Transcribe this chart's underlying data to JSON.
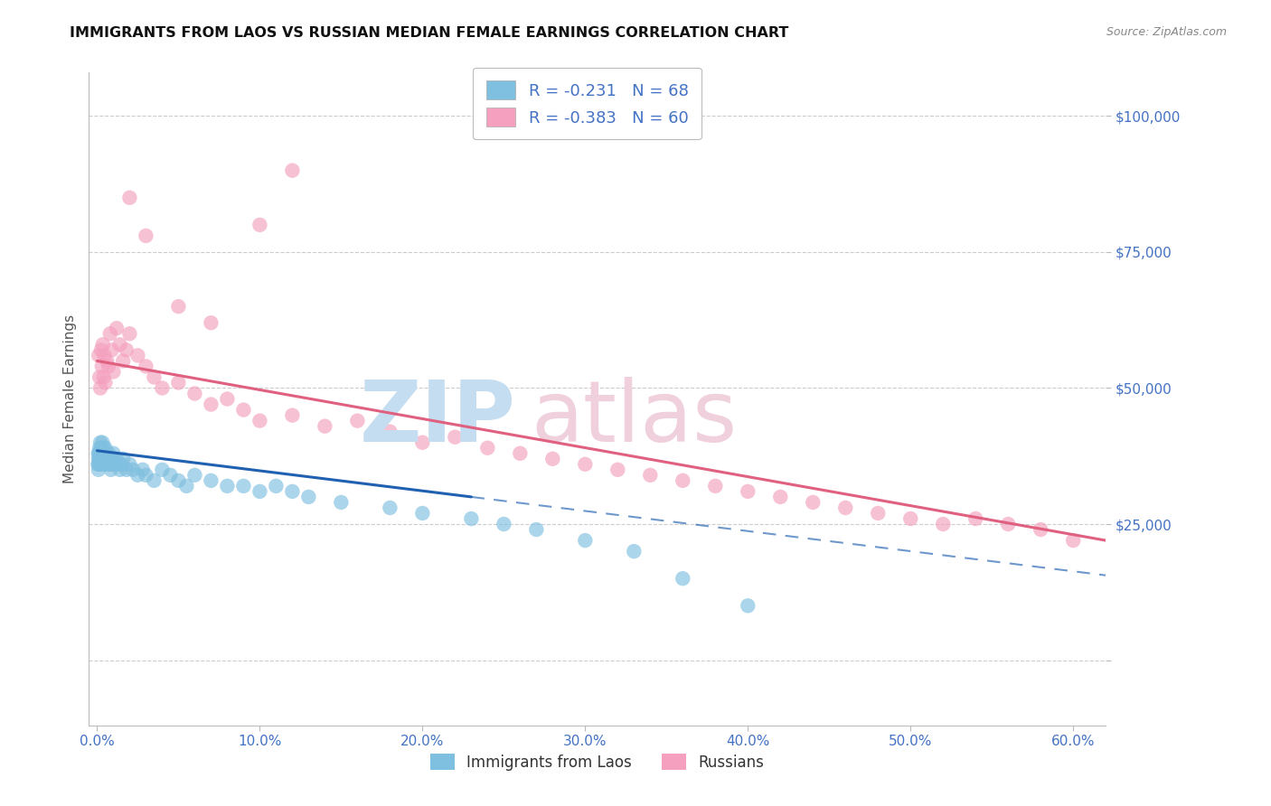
{
  "title": "IMMIGRANTS FROM LAOS VS RUSSIAN MEDIAN FEMALE EARNINGS CORRELATION CHART",
  "source": "Source: ZipAtlas.com",
  "ylabel": "Median Female Earnings",
  "laos_R": -0.231,
  "laos_N": 68,
  "russian_R": -0.383,
  "russian_N": 60,
  "laos_color": "#7fbfdf",
  "russian_color": "#f4a0be",
  "laos_line_color": "#2060b0",
  "russian_line_color": "#e06080",
  "axis_label_color": "#4472c4",
  "grid_color": "#cccccc",
  "title_color": "#111111",
  "source_color": "#888888",
  "ylabel_color": "#555555",
  "watermark_zip_color": "#c5ddf0",
  "watermark_atlas_color": "#f0d0dc",
  "xlim": [
    -0.5,
    62
  ],
  "ylim": [
    -12000,
    108000
  ],
  "yticks": [
    0,
    25000,
    50000,
    75000,
    100000
  ],
  "xticks": [
    0,
    10,
    20,
    30,
    40,
    50,
    60
  ],
  "laos_x": [
    0.05,
    0.07,
    0.08,
    0.09,
    0.1,
    0.12,
    0.13,
    0.15,
    0.17,
    0.18,
    0.2,
    0.22,
    0.25,
    0.28,
    0.3,
    0.33,
    0.35,
    0.38,
    0.4,
    0.43,
    0.45,
    0.48,
    0.5,
    0.55,
    0.6,
    0.65,
    0.7,
    0.75,
    0.8,
    0.85,
    0.9,
    0.95,
    1.0,
    1.1,
    1.2,
    1.3,
    1.4,
    1.5,
    1.6,
    1.8,
    2.0,
    2.2,
    2.5,
    2.8,
    3.0,
    3.5,
    4.0,
    4.5,
    5.0,
    5.5,
    6.0,
    7.0,
    8.0,
    9.0,
    10.0,
    11.0,
    12.0,
    13.0,
    15.0,
    18.0,
    20.0,
    23.0,
    25.0,
    27.0,
    30.0,
    33.0,
    36.0,
    40.0
  ],
  "laos_y": [
    36000,
    38000,
    35000,
    37000,
    36000,
    38000,
    37000,
    39000,
    36000,
    38000,
    40000,
    37000,
    39000,
    38000,
    36000,
    40000,
    38000,
    37000,
    39000,
    36000,
    38000,
    37000,
    39000,
    38000,
    37000,
    36000,
    38000,
    37000,
    36000,
    35000,
    37000,
    36000,
    38000,
    36000,
    37000,
    36000,
    35000,
    36000,
    37000,
    35000,
    36000,
    35000,
    34000,
    35000,
    34000,
    33000,
    35000,
    34000,
    33000,
    32000,
    34000,
    33000,
    32000,
    32000,
    31000,
    32000,
    31000,
    30000,
    29000,
    28000,
    27000,
    26000,
    25000,
    24000,
    22000,
    20000,
    15000,
    10000
  ],
  "russian_x": [
    0.1,
    0.15,
    0.2,
    0.25,
    0.3,
    0.35,
    0.4,
    0.45,
    0.5,
    0.6,
    0.7,
    0.8,
    0.9,
    1.0,
    1.2,
    1.4,
    1.6,
    1.8,
    2.0,
    2.5,
    3.0,
    3.5,
    4.0,
    5.0,
    6.0,
    7.0,
    8.0,
    9.0,
    10.0,
    12.0,
    14.0,
    16.0,
    18.0,
    20.0,
    22.0,
    24.0,
    26.0,
    28.0,
    30.0,
    32.0,
    34.0,
    36.0,
    38.0,
    40.0,
    42.0,
    44.0,
    46.0,
    48.0,
    50.0,
    52.0,
    54.0,
    56.0,
    58.0,
    60.0,
    10.0,
    2.0,
    3.0,
    5.0,
    7.0,
    12.0
  ],
  "russian_y": [
    56000,
    52000,
    50000,
    57000,
    54000,
    58000,
    52000,
    56000,
    51000,
    55000,
    54000,
    60000,
    57000,
    53000,
    61000,
    58000,
    55000,
    57000,
    60000,
    56000,
    54000,
    52000,
    50000,
    51000,
    49000,
    47000,
    48000,
    46000,
    44000,
    45000,
    43000,
    44000,
    42000,
    40000,
    41000,
    39000,
    38000,
    37000,
    36000,
    35000,
    34000,
    33000,
    32000,
    31000,
    30000,
    29000,
    28000,
    27000,
    26000,
    25000,
    26000,
    25000,
    24000,
    22000,
    80000,
    85000,
    78000,
    65000,
    62000,
    90000
  ],
  "blue_solid_xmax": 23,
  "blue_dash_xmax": 63,
  "pink_xmin": 0.0,
  "pink_xmax": 62
}
